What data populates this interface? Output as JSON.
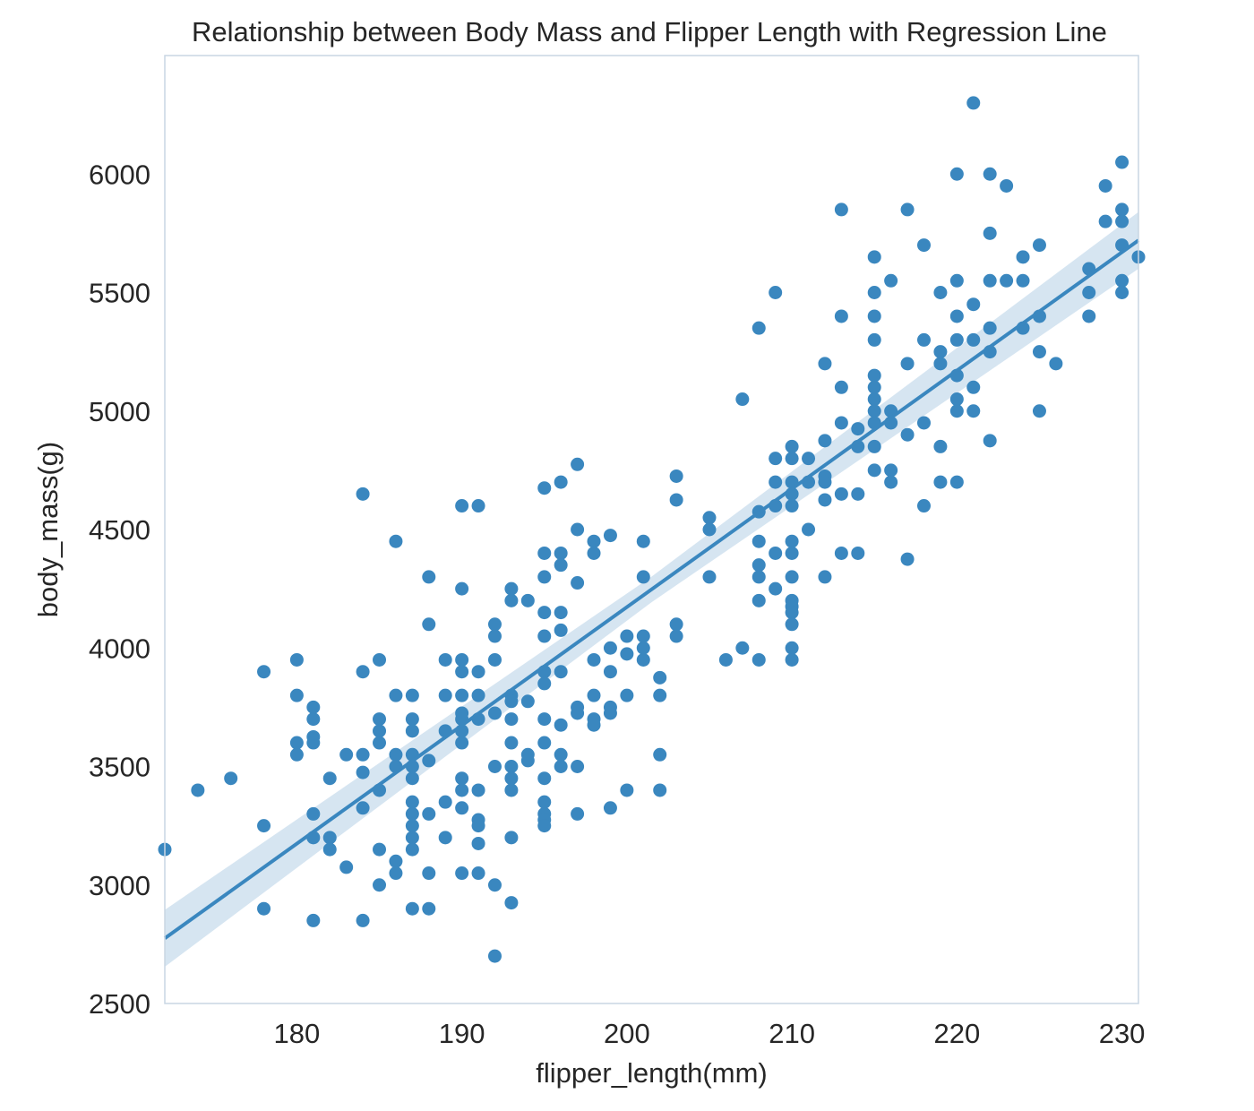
{
  "chart_data": {
    "type": "scatter",
    "title": "Relationship between Body Mass and Flipper Length with Regression Line",
    "xlabel": "flipper_length(mm)",
    "ylabel": "body_mass(g)",
    "xlim": [
      172,
      231
    ],
    "ylim": [
      2500,
      6500
    ],
    "xticks": [
      180,
      190,
      200,
      210,
      220,
      230
    ],
    "yticks": [
      2500,
      3000,
      3500,
      4000,
      4500,
      5000,
      5500,
      6000
    ],
    "grid": false,
    "colors": {
      "points": "#3a87bf",
      "line": "#3a87bf",
      "band": "#cfe0ef",
      "frame": "#c9d6e3"
    },
    "regression": {
      "x": [
        172,
        231
      ],
      "y": [
        2775,
        5720
      ],
      "ci_halfwidth_ends": 120
    },
    "series": [
      {
        "points": [
          [
            172,
            3150
          ],
          [
            174,
            3400
          ],
          [
            176,
            3450
          ],
          [
            178,
            3900
          ],
          [
            178,
            3250
          ],
          [
            178,
            2900
          ],
          [
            180,
            3950
          ],
          [
            180,
            3800
          ],
          [
            180,
            3600
          ],
          [
            180,
            3550
          ],
          [
            181,
            3750
          ],
          [
            181,
            3700
          ],
          [
            181,
            3625
          ],
          [
            181,
            3600
          ],
          [
            181,
            3300
          ],
          [
            181,
            3200
          ],
          [
            181,
            2850
          ],
          [
            182,
            3450
          ],
          [
            182,
            3200
          ],
          [
            182,
            3150
          ],
          [
            183,
            3550
          ],
          [
            183,
            3075
          ],
          [
            184,
            4650
          ],
          [
            184,
            3900
          ],
          [
            184,
            3550
          ],
          [
            184,
            3475
          ],
          [
            184,
            3325
          ],
          [
            184,
            2850
          ],
          [
            185,
            3950
          ],
          [
            185,
            3700
          ],
          [
            185,
            3650
          ],
          [
            185,
            3600
          ],
          [
            185,
            3400
          ],
          [
            185,
            3150
          ],
          [
            185,
            3000
          ],
          [
            186,
            4450
          ],
          [
            186,
            3800
          ],
          [
            186,
            3550
          ],
          [
            186,
            3500
          ],
          [
            186,
            3100
          ],
          [
            186,
            3050
          ],
          [
            187,
            3800
          ],
          [
            187,
            3700
          ],
          [
            187,
            3650
          ],
          [
            187,
            3550
          ],
          [
            187,
            3500
          ],
          [
            187,
            3450
          ],
          [
            187,
            3350
          ],
          [
            187,
            3300
          ],
          [
            187,
            3250
          ],
          [
            187,
            3200
          ],
          [
            187,
            3150
          ],
          [
            187,
            2900
          ],
          [
            188,
            4300
          ],
          [
            188,
            4100
          ],
          [
            188,
            3525
          ],
          [
            188,
            3300
          ],
          [
            188,
            3050
          ],
          [
            188,
            2900
          ],
          [
            189,
            3950
          ],
          [
            189,
            3800
          ],
          [
            189,
            3650
          ],
          [
            189,
            3350
          ],
          [
            189,
            3200
          ],
          [
            190,
            4600
          ],
          [
            190,
            4250
          ],
          [
            190,
            3950
          ],
          [
            190,
            3900
          ],
          [
            190,
            3800
          ],
          [
            190,
            3725
          ],
          [
            190,
            3700
          ],
          [
            190,
            3650
          ],
          [
            190,
            3600
          ],
          [
            190,
            3450
          ],
          [
            190,
            3400
          ],
          [
            190,
            3325
          ],
          [
            190,
            3050
          ],
          [
            191,
            4600
          ],
          [
            191,
            3900
          ],
          [
            191,
            3800
          ],
          [
            191,
            3700
          ],
          [
            191,
            3400
          ],
          [
            191,
            3275
          ],
          [
            191,
            3250
          ],
          [
            191,
            3175
          ],
          [
            191,
            3050
          ],
          [
            192,
            4100
          ],
          [
            192,
            4050
          ],
          [
            192,
            3950
          ],
          [
            192,
            3725
          ],
          [
            192,
            3500
          ],
          [
            192,
            3000
          ],
          [
            192,
            2700
          ],
          [
            193,
            4250
          ],
          [
            193,
            4200
          ],
          [
            193,
            3800
          ],
          [
            193,
            3775
          ],
          [
            193,
            3700
          ],
          [
            193,
            3600
          ],
          [
            193,
            3500
          ],
          [
            193,
            3450
          ],
          [
            193,
            3400
          ],
          [
            193,
            3200
          ],
          [
            193,
            2925
          ],
          [
            194,
            4200
          ],
          [
            194,
            3775
          ],
          [
            194,
            3550
          ],
          [
            194,
            3525
          ],
          [
            195,
            4675
          ],
          [
            195,
            4400
          ],
          [
            195,
            4300
          ],
          [
            195,
            4150
          ],
          [
            195,
            4050
          ],
          [
            195,
            3900
          ],
          [
            195,
            3850
          ],
          [
            195,
            3700
          ],
          [
            195,
            3600
          ],
          [
            195,
            3450
          ],
          [
            195,
            3350
          ],
          [
            195,
            3300
          ],
          [
            195,
            3275
          ],
          [
            195,
            3250
          ],
          [
            196,
            4700
          ],
          [
            196,
            4400
          ],
          [
            196,
            4350
          ],
          [
            196,
            4150
          ],
          [
            196,
            4075
          ],
          [
            196,
            3900
          ],
          [
            196,
            3675
          ],
          [
            196,
            3550
          ],
          [
            196,
            3500
          ],
          [
            197,
            4775
          ],
          [
            197,
            4500
          ],
          [
            197,
            4275
          ],
          [
            197,
            3750
          ],
          [
            197,
            3725
          ],
          [
            197,
            3500
          ],
          [
            197,
            3300
          ],
          [
            198,
            4450
          ],
          [
            198,
            4400
          ],
          [
            198,
            3950
          ],
          [
            198,
            3800
          ],
          [
            198,
            3700
          ],
          [
            198,
            3675
          ],
          [
            199,
            4475
          ],
          [
            199,
            4000
          ],
          [
            199,
            3900
          ],
          [
            199,
            3750
          ],
          [
            199,
            3725
          ],
          [
            199,
            3325
          ],
          [
            200,
            4050
          ],
          [
            200,
            3975
          ],
          [
            200,
            3800
          ],
          [
            200,
            3400
          ],
          [
            201,
            4450
          ],
          [
            201,
            4300
          ],
          [
            201,
            4050
          ],
          [
            201,
            4000
          ],
          [
            201,
            3950
          ],
          [
            202,
            3875
          ],
          [
            202,
            3800
          ],
          [
            202,
            3550
          ],
          [
            202,
            3400
          ],
          [
            203,
            4725
          ],
          [
            203,
            4625
          ],
          [
            203,
            4100
          ],
          [
            203,
            4050
          ],
          [
            205,
            4550
          ],
          [
            205,
            4500
          ],
          [
            205,
            4300
          ],
          [
            206,
            3950
          ],
          [
            207,
            5050
          ],
          [
            207,
            4000
          ],
          [
            208,
            5350
          ],
          [
            208,
            4575
          ],
          [
            208,
            4450
          ],
          [
            208,
            4350
          ],
          [
            208,
            4300
          ],
          [
            208,
            4200
          ],
          [
            208,
            3950
          ],
          [
            209,
            5500
          ],
          [
            209,
            4800
          ],
          [
            209,
            4700
          ],
          [
            209,
            4600
          ],
          [
            209,
            4400
          ],
          [
            209,
            4250
          ],
          [
            210,
            4850
          ],
          [
            210,
            4800
          ],
          [
            210,
            4700
          ],
          [
            210,
            4650
          ],
          [
            210,
            4600
          ],
          [
            210,
            4450
          ],
          [
            210,
            4400
          ],
          [
            210,
            4300
          ],
          [
            210,
            4200
          ],
          [
            210,
            4175
          ],
          [
            210,
            4150
          ],
          [
            210,
            4100
          ],
          [
            210,
            4000
          ],
          [
            210,
            3950
          ],
          [
            211,
            4800
          ],
          [
            211,
            4700
          ],
          [
            211,
            4500
          ],
          [
            212,
            5200
          ],
          [
            212,
            4875
          ],
          [
            212,
            4725
          ],
          [
            212,
            4700
          ],
          [
            212,
            4625
          ],
          [
            212,
            4300
          ],
          [
            213,
            5850
          ],
          [
            213,
            5400
          ],
          [
            213,
            5100
          ],
          [
            213,
            4950
          ],
          [
            213,
            4650
          ],
          [
            213,
            4400
          ],
          [
            214,
            4925
          ],
          [
            214,
            4850
          ],
          [
            214,
            4650
          ],
          [
            214,
            4400
          ],
          [
            215,
            5650
          ],
          [
            215,
            5500
          ],
          [
            215,
            5400
          ],
          [
            215,
            5300
          ],
          [
            215,
            5150
          ],
          [
            215,
            5100
          ],
          [
            215,
            5050
          ],
          [
            215,
            5000
          ],
          [
            215,
            4950
          ],
          [
            215,
            4850
          ],
          [
            215,
            4750
          ],
          [
            216,
            5550
          ],
          [
            216,
            5000
          ],
          [
            216,
            4950
          ],
          [
            216,
            4750
          ],
          [
            216,
            4700
          ],
          [
            217,
            5850
          ],
          [
            217,
            5200
          ],
          [
            217,
            4900
          ],
          [
            217,
            4375
          ],
          [
            218,
            5700
          ],
          [
            218,
            5300
          ],
          [
            218,
            4950
          ],
          [
            218,
            4600
          ],
          [
            219,
            5500
          ],
          [
            219,
            5250
          ],
          [
            219,
            5200
          ],
          [
            219,
            4850
          ],
          [
            219,
            4700
          ],
          [
            220,
            6000
          ],
          [
            220,
            5550
          ],
          [
            220,
            5400
          ],
          [
            220,
            5300
          ],
          [
            220,
            5150
          ],
          [
            220,
            5050
          ],
          [
            220,
            5000
          ],
          [
            220,
            4700
          ],
          [
            221,
            6300
          ],
          [
            221,
            5450
          ],
          [
            221,
            5300
          ],
          [
            221,
            5100
          ],
          [
            221,
            5000
          ],
          [
            222,
            6000
          ],
          [
            222,
            5750
          ],
          [
            222,
            5550
          ],
          [
            222,
            5350
          ],
          [
            222,
            5250
          ],
          [
            222,
            4875
          ],
          [
            223,
            5950
          ],
          [
            223,
            5550
          ],
          [
            224,
            5650
          ],
          [
            224,
            5550
          ],
          [
            224,
            5350
          ],
          [
            225,
            5700
          ],
          [
            225,
            5400
          ],
          [
            225,
            5250
          ],
          [
            225,
            5000
          ],
          [
            226,
            5200
          ],
          [
            228,
            5600
          ],
          [
            228,
            5500
          ],
          [
            228,
            5400
          ],
          [
            229,
            5950
          ],
          [
            229,
            5800
          ],
          [
            230,
            6050
          ],
          [
            230,
            5850
          ],
          [
            230,
            5800
          ],
          [
            230,
            5700
          ],
          [
            230,
            5550
          ],
          [
            230,
            5500
          ],
          [
            231,
            5650
          ]
        ]
      }
    ]
  }
}
